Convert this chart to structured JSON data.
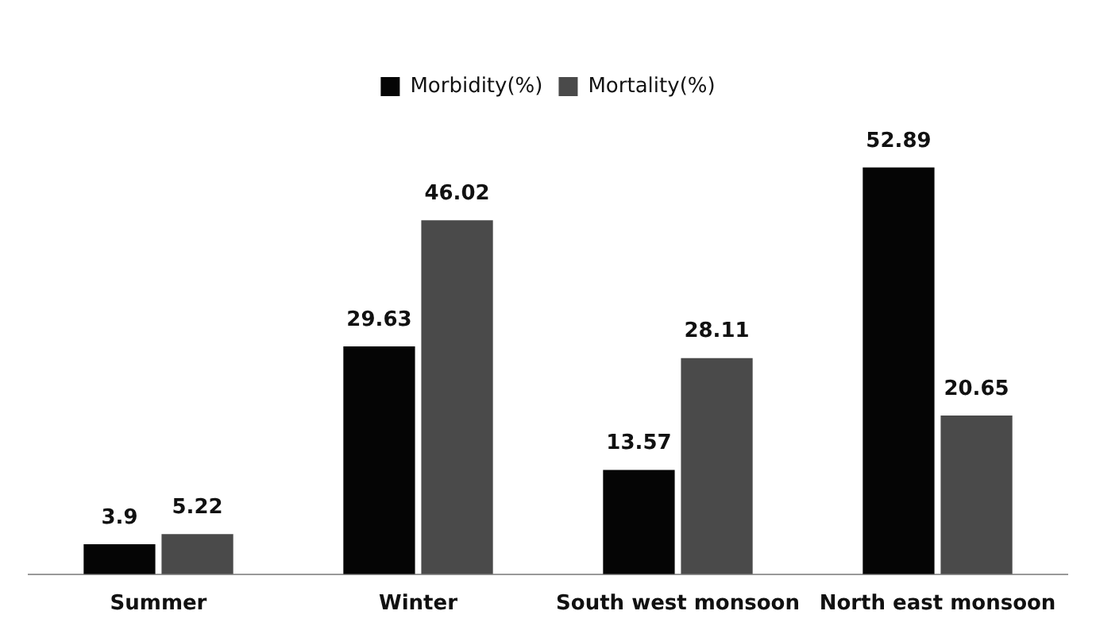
{
  "chart_data": {
    "type": "bar",
    "categories": [
      "Summer",
      "Winter",
      "South west monsoon",
      "North east monsoon"
    ],
    "series": [
      {
        "name": "Morbidity(%)",
        "color": "#050505",
        "values": [
          3.9,
          29.63,
          13.57,
          52.89
        ]
      },
      {
        "name": "Mortality(%)",
        "color": "#4a4a4a",
        "values": [
          5.22,
          46.02,
          28.11,
          20.65
        ]
      }
    ],
    "data_labels": true,
    "legend": "top",
    "grid": false,
    "tick_labels": "x"
  }
}
